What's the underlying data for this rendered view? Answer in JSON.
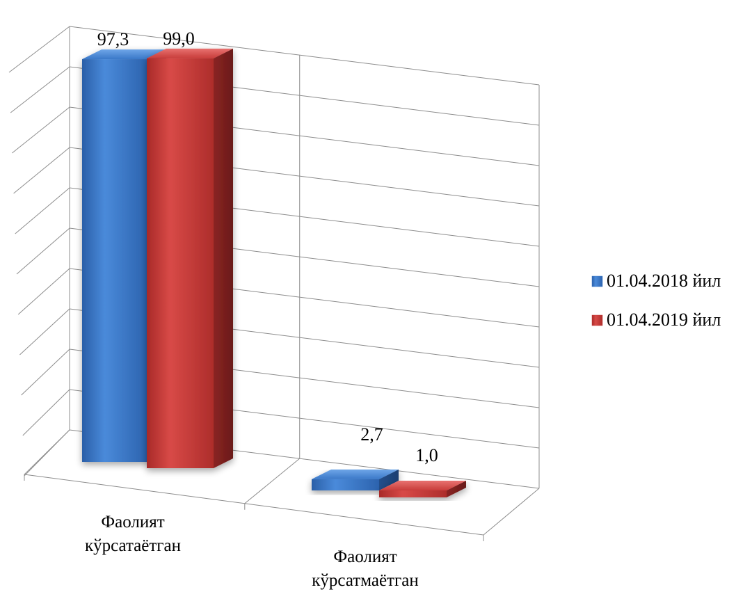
{
  "chart_data": {
    "type": "bar",
    "title": "",
    "xlabel": "",
    "ylabel": "",
    "categories": [
      [
        "Фаолият",
        "кўрсатаётган"
      ],
      [
        "Фаолият",
        "кўрсатмаётган"
      ]
    ],
    "series": [
      {
        "name": "01.04.2018 йил",
        "values": [
          97.3,
          2.7
        ],
        "labels": [
          "97,3",
          "2,7"
        ],
        "color": "#3a78c8"
      },
      {
        "name": "01.04.2019 йил",
        "values": [
          99.0,
          1.0
        ],
        "labels": [
          "99,0",
          "1,0"
        ],
        "color": "#c83c3a"
      }
    ],
    "ylim": [
      0,
      100
    ],
    "grid": true,
    "legend_position": "right",
    "three_d": true
  }
}
